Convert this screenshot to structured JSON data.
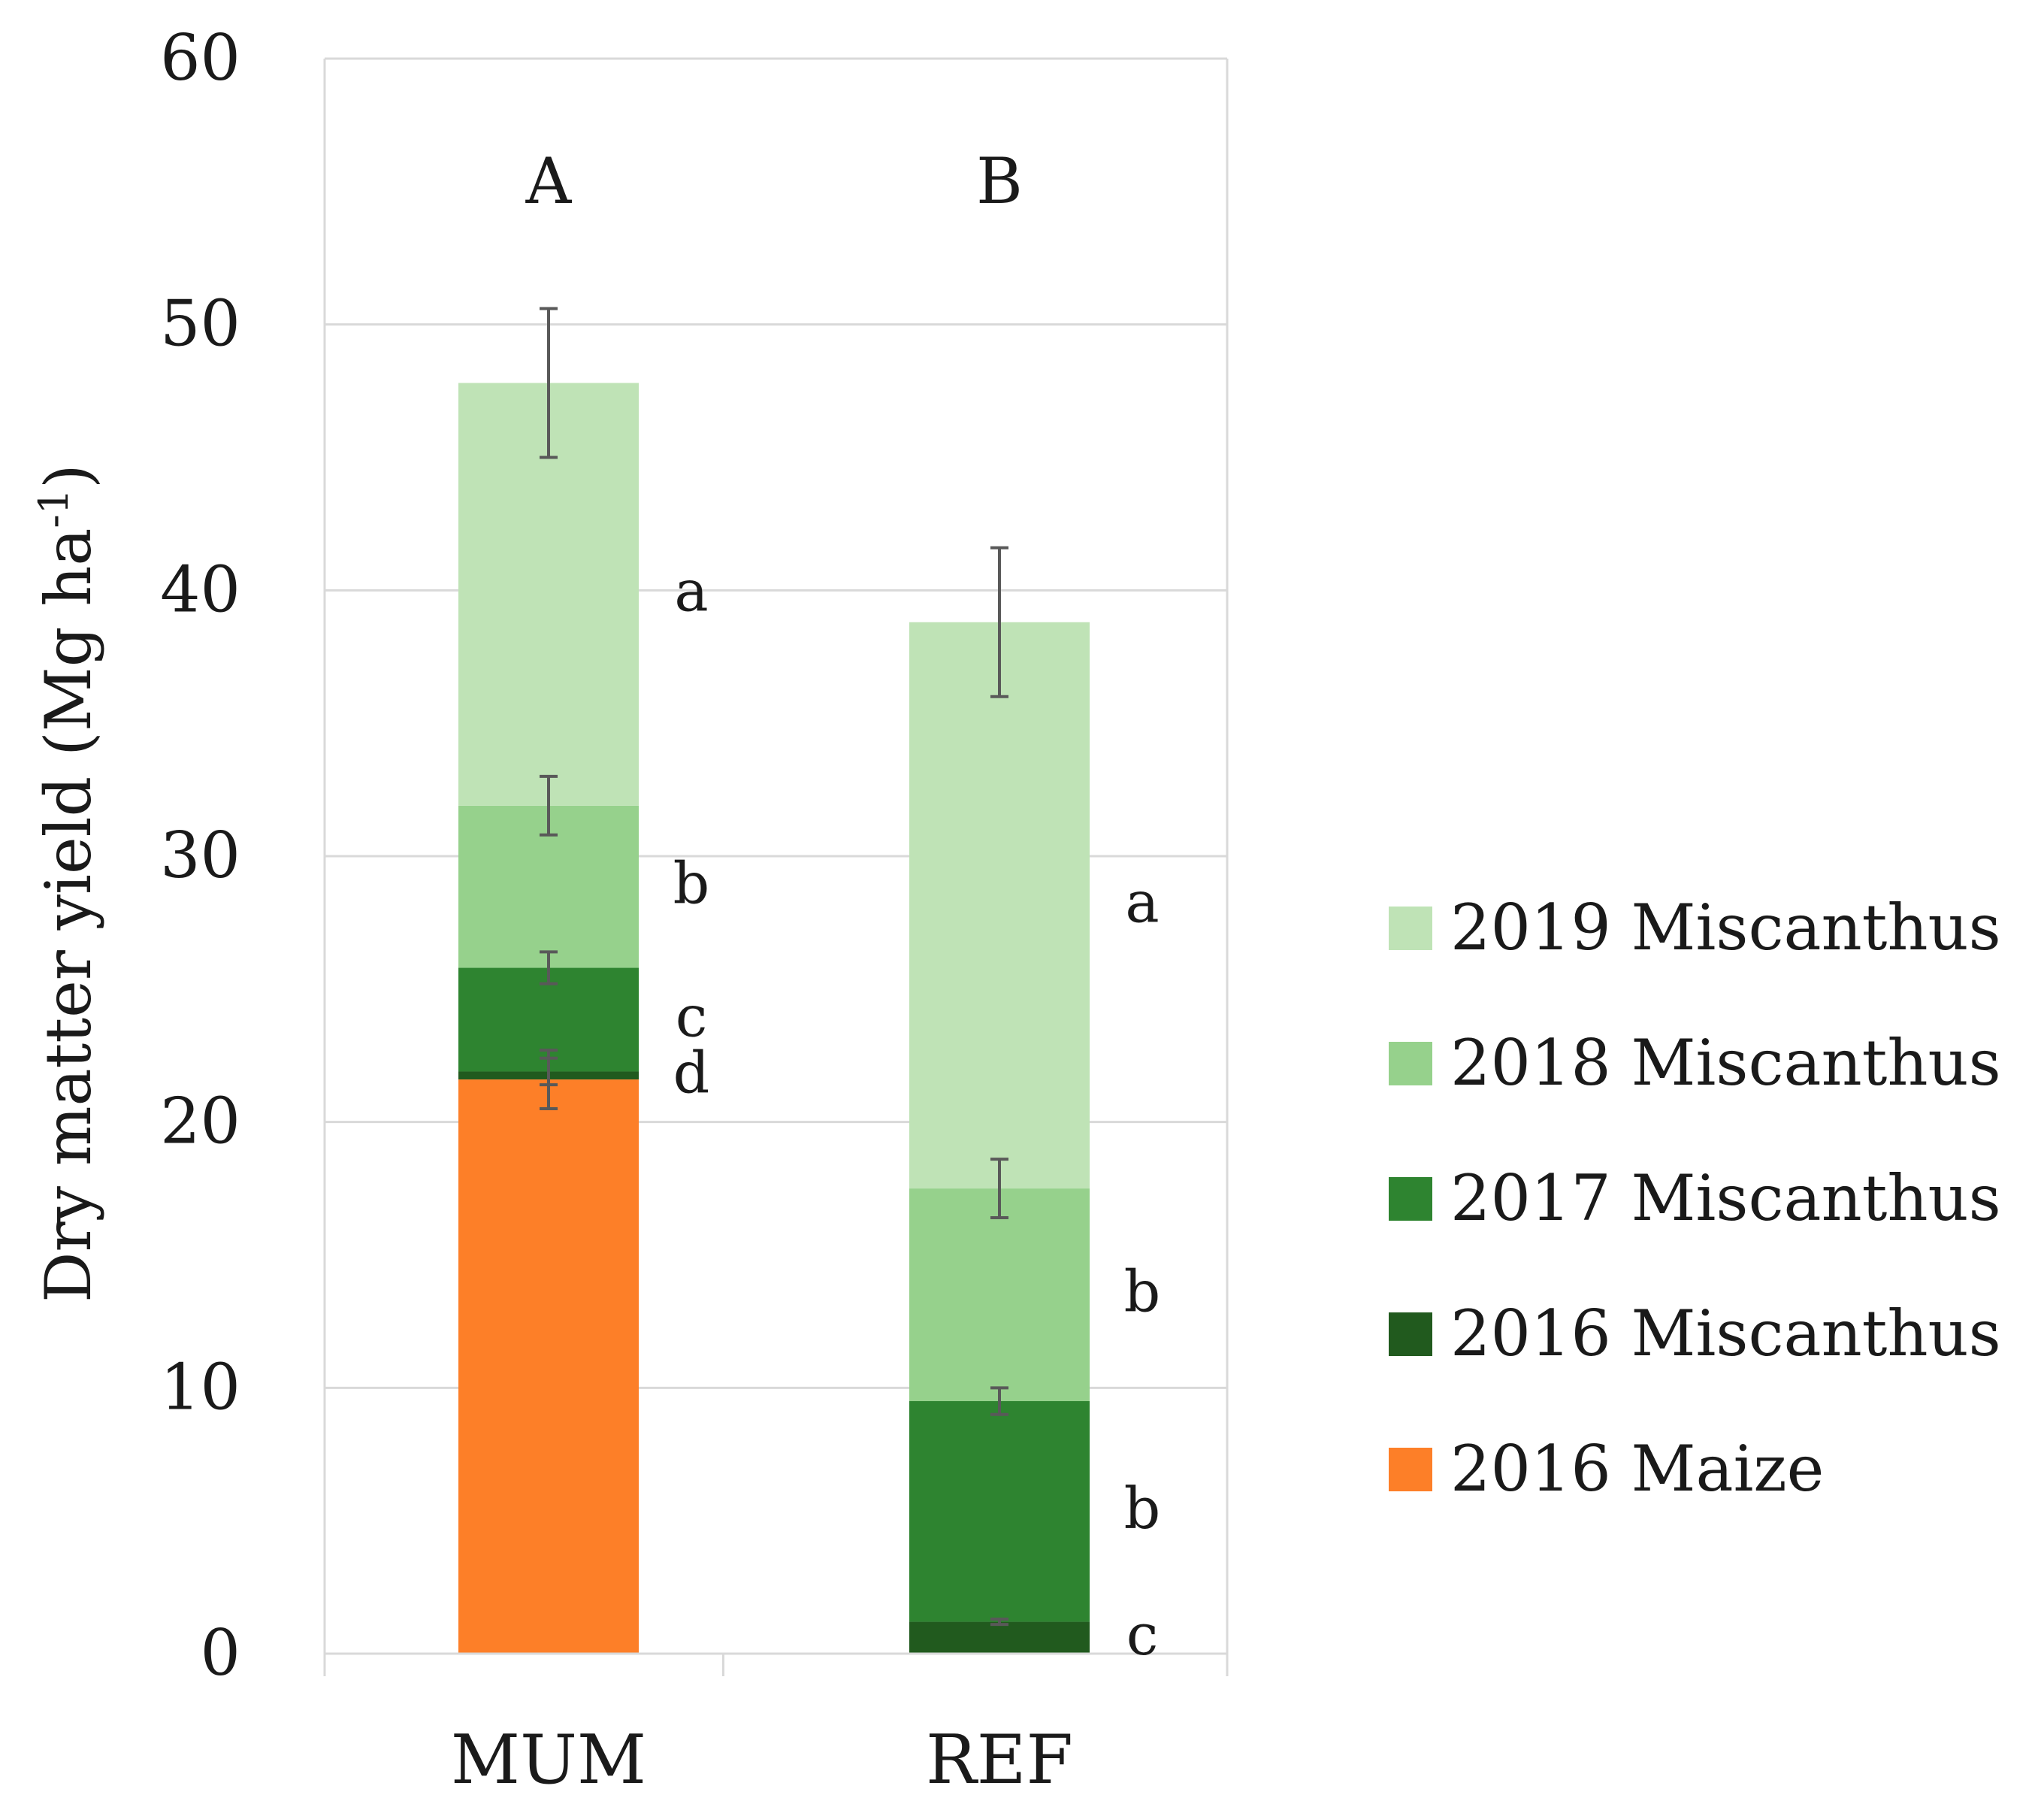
{
  "chart_data": {
    "type": "bar",
    "stacked": true,
    "ylabel": "Dry matter yield (Mg ha",
    "ylabel_superscript": "-1",
    "ylabel_suffix": ")",
    "ylim": [
      0,
      60
    ],
    "yticks": [
      "0",
      "10",
      "20",
      "30",
      "40",
      "50",
      "60"
    ],
    "grid": true,
    "categories": [
      "MUM",
      "REF"
    ],
    "group_letters": [
      "A",
      "B"
    ],
    "series": [
      {
        "name": "2016 Maize",
        "color": "#fd7f28",
        "values": [
          21.6,
          0
        ],
        "errors": [
          1.1,
          0
        ],
        "letters": [
          "",
          ""
        ]
      },
      {
        "name": "2016 Miscanthus",
        "color": "#215a1e",
        "values": [
          0.3,
          1.2
        ],
        "errors": [
          0.5,
          0.1
        ],
        "letters": [
          "d",
          "c"
        ]
      },
      {
        "name": "2017 Miscanthus",
        "color": "#2e8430",
        "values": [
          3.9,
          8.3
        ],
        "errors": [
          0.6,
          0.5
        ],
        "letters": [
          "c",
          "b"
        ]
      },
      {
        "name": "2018 Miscanthus",
        "color": "#96d18c",
        "values": [
          6.1,
          8.0
        ],
        "errors": [
          1.1,
          1.1
        ],
        "letters": [
          "b",
          "b"
        ]
      },
      {
        "name": "2019 Miscanthus",
        "color": "#bfe3b6",
        "values": [
          15.9,
          21.3
        ],
        "errors": [
          2.8,
          2.8
        ],
        "letters": [
          "a",
          "a"
        ]
      }
    ],
    "legend_order": [
      "2019 Miscanthus",
      "2018 Miscanthus",
      "2017 Miscanthus",
      "2016 Miscanthus",
      "2016 Maize"
    ],
    "legend_position": "right"
  }
}
